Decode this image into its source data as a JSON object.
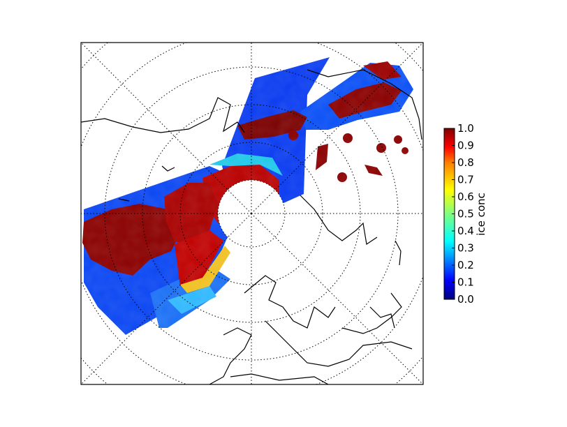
{
  "map": {
    "projection": "north-polar-stereographic",
    "graticule": "dotted",
    "coastline_color": "#000000",
    "swath_colormap": "jet"
  },
  "colorbar": {
    "label": "ice conc",
    "range": [
      0.0,
      1.0
    ],
    "ticks": [
      "0.0",
      "0.1",
      "0.2",
      "0.3",
      "0.4",
      "0.5",
      "0.6",
      "0.7",
      "0.8",
      "0.9",
      "1.0"
    ],
    "colors": [
      "#00007f",
      "#0000ff",
      "#007fff",
      "#00ffff",
      "#7fff7f",
      "#ffff00",
      "#ff7f00",
      "#ff0000",
      "#7f0000"
    ]
  }
}
